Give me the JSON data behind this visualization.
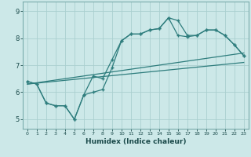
{
  "title": "",
  "xlabel": "Humidex (Indice chaleur)",
  "bg_color": "#cce8e8",
  "grid_color": "#aacfcf",
  "line_color": "#2e7d7d",
  "marker": "+",
  "xlim": [
    -0.5,
    23.5
  ],
  "ylim": [
    4.65,
    9.35
  ],
  "xticks": [
    0,
    1,
    2,
    3,
    4,
    5,
    6,
    7,
    8,
    9,
    10,
    11,
    12,
    13,
    14,
    15,
    16,
    17,
    18,
    19,
    20,
    21,
    22,
    23
  ],
  "yticks": [
    5,
    6,
    7,
    8,
    9
  ],
  "line1_x": [
    0,
    1,
    2,
    3,
    4,
    5,
    6,
    7,
    8,
    9,
    10,
    11,
    12,
    13,
    14,
    15,
    16,
    17,
    18,
    19,
    20,
    21,
    22,
    23
  ],
  "line1_y": [
    6.4,
    6.3,
    5.6,
    5.5,
    5.5,
    5.0,
    5.9,
    6.0,
    6.1,
    6.9,
    7.9,
    8.15,
    8.15,
    8.3,
    8.35,
    8.75,
    8.65,
    8.1,
    8.1,
    8.3,
    8.3,
    8.1,
    7.75,
    7.35
  ],
  "line2_x": [
    0,
    1,
    2,
    3,
    4,
    5,
    6,
    7,
    8,
    9,
    10,
    11,
    12,
    13,
    14,
    15,
    16,
    17,
    18,
    19,
    20,
    21,
    22,
    23
  ],
  "line2_y": [
    6.4,
    6.3,
    5.6,
    5.5,
    5.5,
    5.0,
    5.9,
    6.6,
    6.5,
    7.2,
    7.9,
    8.15,
    8.15,
    8.3,
    8.35,
    8.75,
    8.1,
    8.05,
    8.1,
    8.3,
    8.3,
    8.1,
    7.75,
    7.35
  ],
  "line3_x": [
    0,
    23
  ],
  "line3_y": [
    6.3,
    7.45
  ],
  "line4_x": [
    0,
    23
  ],
  "line4_y": [
    6.3,
    7.1
  ]
}
